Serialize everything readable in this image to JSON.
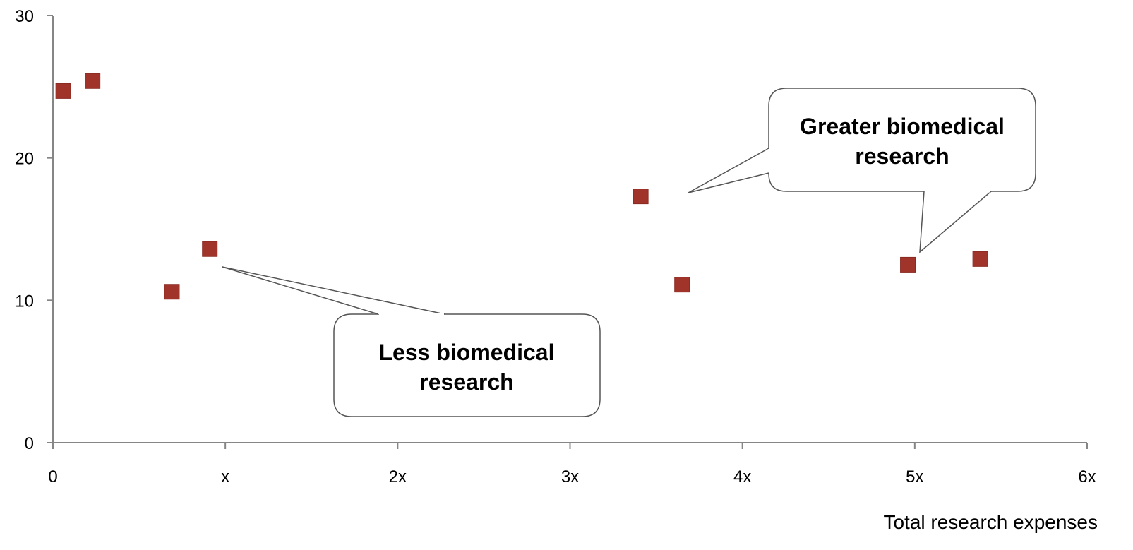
{
  "chart_data": {
    "type": "scatter",
    "title": "",
    "xlabel": "Total research expenses",
    "ylabel": "",
    "xlim": [
      0,
      6
    ],
    "ylim": [
      0,
      30
    ],
    "x_ticks": [
      {
        "value": 0,
        "label": "0"
      },
      {
        "value": 1,
        "label": "x"
      },
      {
        "value": 2,
        "label": "2x"
      },
      {
        "value": 3,
        "label": "3x"
      },
      {
        "value": 4,
        "label": "4x"
      },
      {
        "value": 5,
        "label": "5x"
      },
      {
        "value": 6,
        "label": "6x"
      }
    ],
    "y_ticks": [
      {
        "value": 0,
        "label": "0"
      },
      {
        "value": 10,
        "label": "10"
      },
      {
        "value": 20,
        "label": "20"
      },
      {
        "value": 30,
        "label": "30"
      }
    ],
    "grid": false,
    "legend": "none",
    "marker": "square",
    "marker_color": "#a0342b",
    "points": [
      {
        "x": 0.06,
        "y": 24.7
      },
      {
        "x": 0.23,
        "y": 25.4
      },
      {
        "x": 0.69,
        "y": 10.6
      },
      {
        "x": 0.91,
        "y": 13.6
      },
      {
        "x": 3.41,
        "y": 17.3
      },
      {
        "x": 3.65,
        "y": 11.1
      },
      {
        "x": 4.96,
        "y": 12.5
      },
      {
        "x": 5.38,
        "y": 12.9
      }
    ],
    "annotations": [
      {
        "lines": [
          "Less biomedical",
          "research"
        ],
        "points_to": [
          0.91,
          13.6
        ]
      },
      {
        "lines": [
          "Greater biomedical",
          "research"
        ],
        "points_to": [
          [
            3.41,
            17.3
          ],
          [
            4.96,
            12.5
          ]
        ]
      }
    ]
  }
}
